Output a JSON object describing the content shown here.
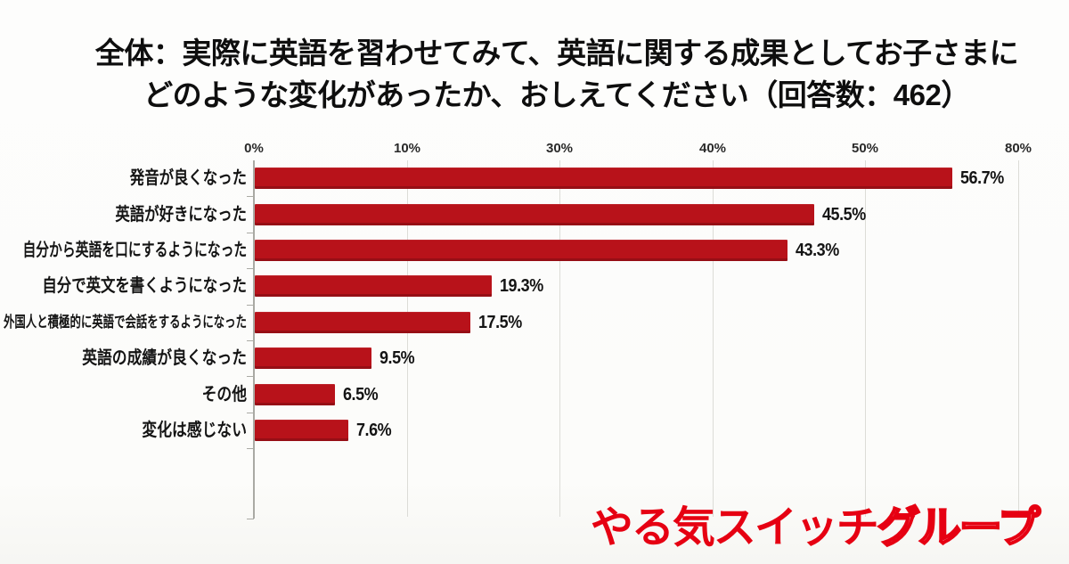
{
  "title": {
    "line1": "全体：実際に英語を習わせてみて、英語に関する成果としてお子さまに",
    "line2": "どのような変化があったか、おしえてください（回答数：462）"
  },
  "chart_data": {
    "type": "bar",
    "orientation": "horizontal",
    "title": "全体：実際に英語を習わせてみて、英語に関する成果としてお子さまにどのような変化があったか、おしえてください（回答数：462）",
    "response_count": 462,
    "categories": [
      "発音が良くなった",
      "英語が好きになった",
      "自分から英語を口にするようになった",
      "自分で英文を書くようになった",
      "外国人と積極的に英語で会話をするようになった",
      "英語の成績が良くなった",
      "その他",
      "変化は感じない"
    ],
    "values": [
      56.7,
      45.5,
      43.3,
      19.3,
      17.5,
      9.5,
      6.5,
      7.6
    ],
    "value_labels": [
      "56.7%",
      "45.5%",
      "43.3%",
      "19.3%",
      "17.5%",
      "9.5%",
      "6.5%",
      "7.6%"
    ],
    "x_tick_labels": [
      "0%",
      "10%",
      "30%",
      "40%",
      "50%",
      "80%"
    ],
    "xlim": [
      0,
      62
    ],
    "xlabel": "",
    "ylabel": "",
    "grid": true,
    "legend": false,
    "bar_color": "#b8121a"
  },
  "logo": {
    "part1": "やる気スイッチ",
    "part2": "グループ",
    "color": "#e60012"
  },
  "colors": {
    "background": "#fdfdfc",
    "bar": "#b8121a",
    "text": "#141414",
    "grid": "#dcdcd7",
    "axis": "#aaaaa4",
    "logo_red": "#e60012"
  }
}
